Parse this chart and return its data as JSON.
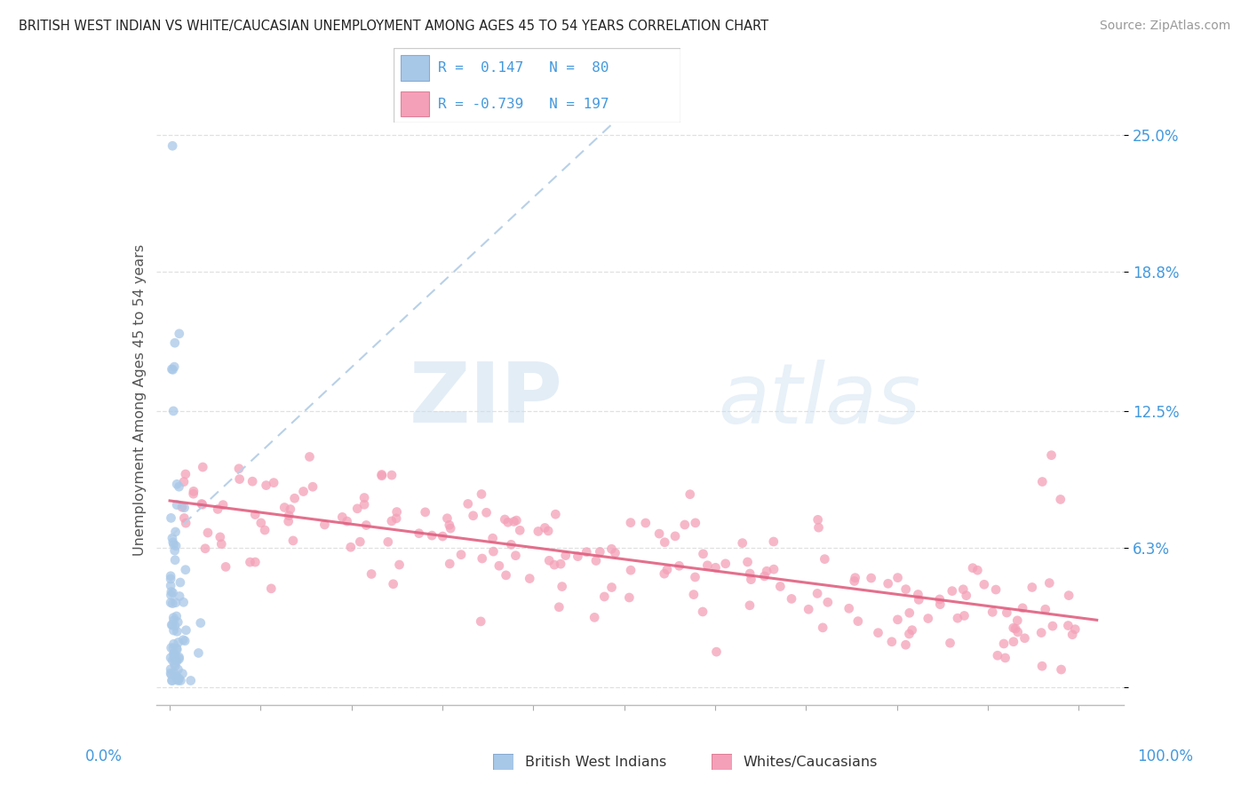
{
  "title": "BRITISH WEST INDIAN VS WHITE/CAUCASIAN UNEMPLOYMENT AMONG AGES 45 TO 54 YEARS CORRELATION CHART",
  "source": "Source: ZipAtlas.com",
  "ylabel": "Unemployment Among Ages 45 to 54 years",
  "ytick_vals": [
    0.0,
    0.063,
    0.125,
    0.188,
    0.25
  ],
  "ytick_labels": [
    "",
    "6.3%",
    "12.5%",
    "18.8%",
    "25.0%"
  ],
  "color_bwi": "#a8c8e8",
  "color_wc": "#f4a0b8",
  "color_wc_line": "#e06080",
  "color_bwi_line": "#b8d0e8",
  "watermark_zip": "ZIP",
  "watermark_atlas": "atlas",
  "bg_color": "#ffffff",
  "grid_color": "#e0e0e0",
  "ytick_color": "#4499dd",
  "xtick_color": "#4499dd",
  "title_color": "#222222",
  "source_color": "#999999",
  "legend_text_color": "#4499dd",
  "ylabel_color": "#555555"
}
